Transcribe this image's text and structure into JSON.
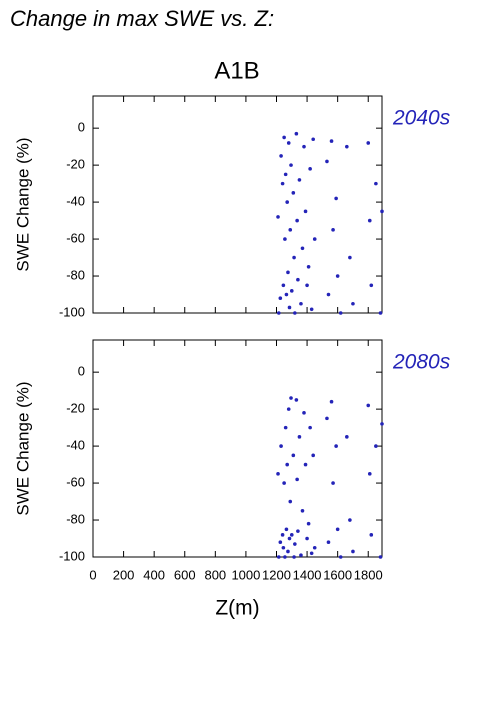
{
  "title": "Change in max SWE vs. Z:",
  "subtitle": "A1B",
  "chart_data": [
    {
      "type": "scatter",
      "label": "2040s",
      "ylabel": "SWE Change (%)",
      "color": "#2424b8",
      "xlim": [
        0,
        1890
      ],
      "xticks": [
        0,
        200,
        400,
        600,
        800,
        1000,
        1200,
        1400,
        1600,
        1800
      ],
      "ylim": [
        -100,
        17.4
      ],
      "yticks": [
        -100,
        -80,
        -60,
        -40,
        -20,
        0
      ],
      "x": [
        1210,
        1215,
        1225,
        1230,
        1240,
        1245,
        1250,
        1255,
        1260,
        1265,
        1270,
        1275,
        1280,
        1285,
        1290,
        1295,
        1300,
        1310,
        1315,
        1320,
        1330,
        1335,
        1340,
        1350,
        1360,
        1370,
        1380,
        1390,
        1400,
        1410,
        1420,
        1430,
        1440,
        1450,
        1530,
        1540,
        1560,
        1570,
        1590,
        1600,
        1620,
        1660,
        1680,
        1700,
        1800,
        1810,
        1820,
        1850,
        1880,
        1890
      ],
      "y": [
        -48,
        -100,
        -92,
        -15,
        -30,
        -85,
        -5,
        -60,
        -25,
        -90,
        -40,
        -78,
        -8,
        -97,
        -55,
        -20,
        -88,
        -35,
        -70,
        -100,
        -3,
        -50,
        -82,
        -28,
        -95,
        -65,
        -10,
        -45,
        -85,
        -75,
        -22,
        -98,
        -6,
        -60,
        -18,
        -90,
        -7,
        -55,
        -38,
        -80,
        -100,
        -10,
        -70,
        -95,
        -8,
        -50,
        -85,
        -30,
        -100,
        -45
      ]
    },
    {
      "type": "scatter",
      "label": "2080s",
      "ylabel": "SWE Change (%)",
      "xlabel": "Z(m)",
      "color": "#2424b8",
      "xlim": [
        0,
        1890
      ],
      "xticks": [
        0,
        200,
        400,
        600,
        800,
        1000,
        1200,
        1400,
        1600,
        1800
      ],
      "ylim": [
        -100,
        17.4
      ],
      "yticks": [
        -100,
        -80,
        -60,
        -40,
        -20,
        0
      ],
      "x": [
        1210,
        1215,
        1225,
        1230,
        1240,
        1245,
        1250,
        1255,
        1260,
        1265,
        1270,
        1275,
        1280,
        1285,
        1290,
        1295,
        1300,
        1310,
        1315,
        1320,
        1330,
        1335,
        1340,
        1350,
        1360,
        1370,
        1380,
        1390,
        1400,
        1410,
        1420,
        1430,
        1440,
        1450,
        1530,
        1540,
        1560,
        1570,
        1590,
        1600,
        1620,
        1660,
        1680,
        1700,
        1800,
        1810,
        1820,
        1850,
        1880,
        1890
      ],
      "y": [
        -55,
        -100,
        -92,
        -40,
        -88,
        -95,
        -60,
        -100,
        -30,
        -85,
        -50,
        -97,
        -20,
        -90,
        -70,
        -14,
        -88,
        -45,
        -100,
        -93,
        -15,
        -58,
        -86,
        -35,
        -99,
        -75,
        -22,
        -50,
        -90,
        -82,
        -30,
        -98,
        -45,
        -95,
        -25,
        -92,
        -16,
        -60,
        -40,
        -85,
        -100,
        -35,
        -80,
        -97,
        -18,
        -55,
        -88,
        -40,
        -100,
        -28
      ]
    }
  ]
}
